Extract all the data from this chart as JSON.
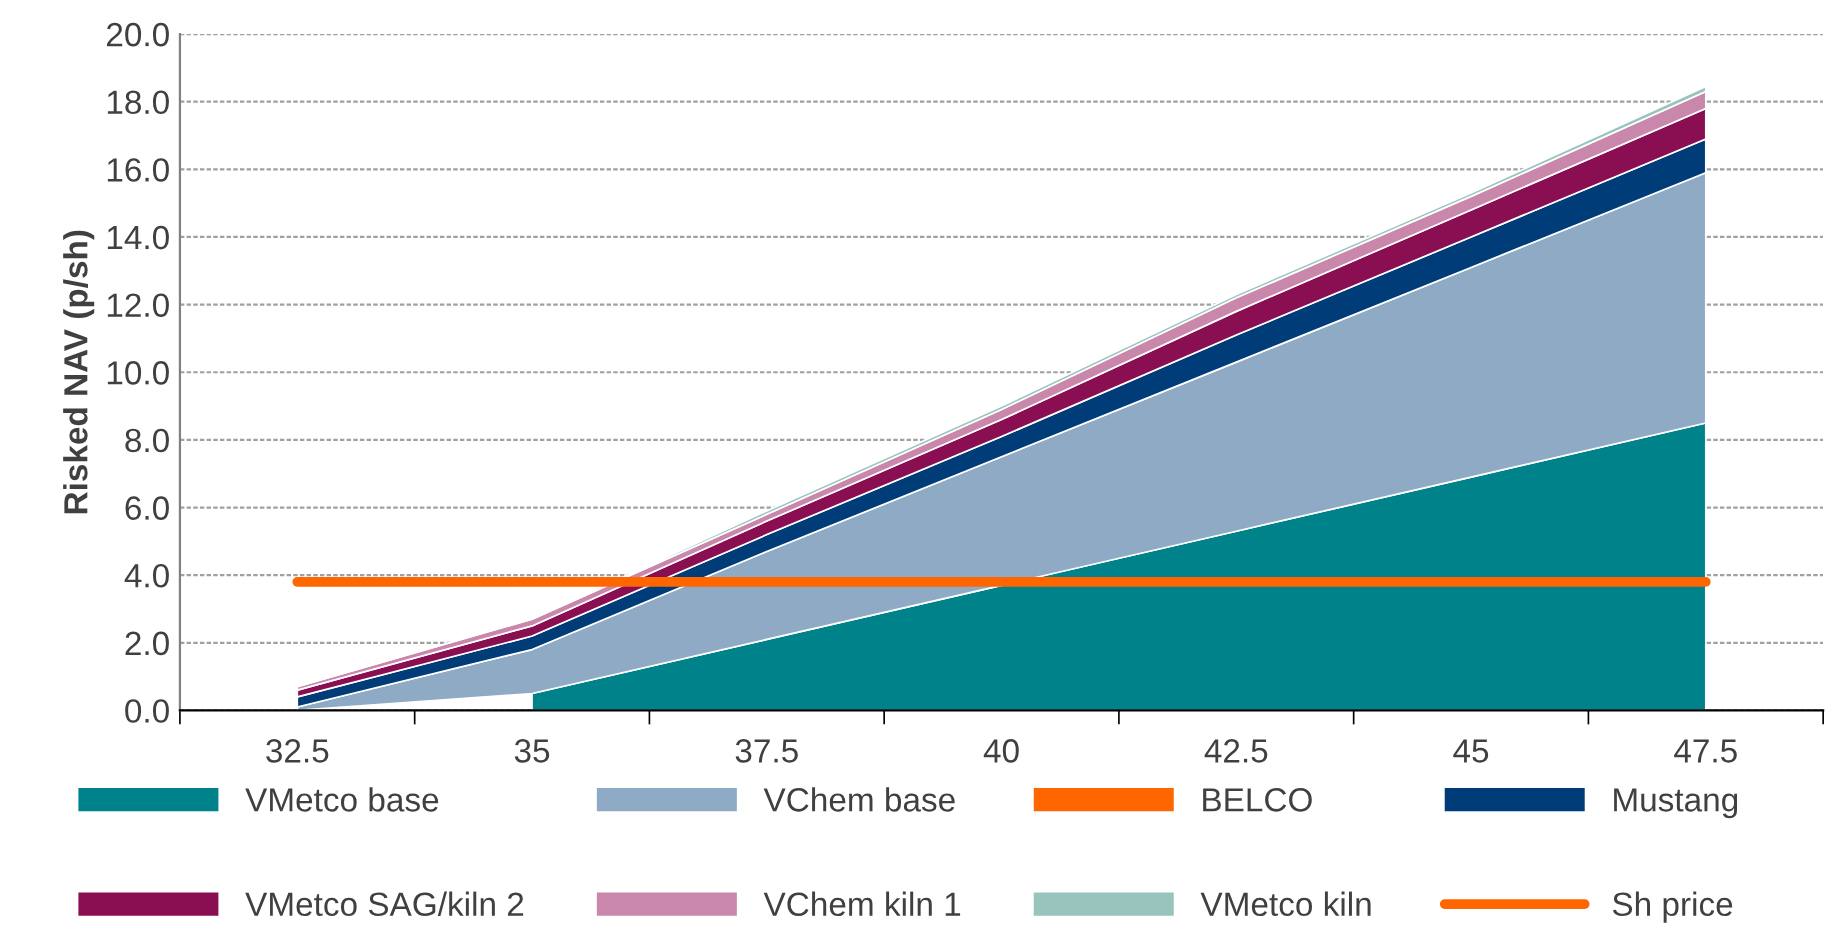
{
  "chart_data": {
    "type": "area",
    "stacked": true,
    "ylabel": "Risked NAV (p/sh)",
    "categories": [
      "32.5",
      "35",
      "37.5",
      "40",
      "42.5",
      "45",
      "47.5"
    ],
    "series": [
      {
        "name": "VMetco base",
        "color": "#00828a",
        "values": [
          null,
          0.5,
          2.1,
          3.7,
          5.3,
          6.9,
          8.5
        ]
      },
      {
        "name": "VChem base",
        "color": "#8eaac4",
        "values": [
          0.1,
          1.3,
          2.6,
          3.8,
          5.0,
          6.2,
          7.4
        ]
      },
      {
        "name": "BELCO",
        "color": "#ff6600",
        "values": [
          null,
          null,
          null,
          null,
          null,
          null,
          null
        ]
      },
      {
        "name": "Mustang",
        "color": "#003c78",
        "values": [
          0.3,
          0.4,
          0.5,
          0.6,
          0.8,
          0.9,
          1.0
        ]
      },
      {
        "name": "VMetco SAG/kiln 2",
        "color": "#8a0f52",
        "values": [
          0.2,
          0.3,
          0.4,
          0.5,
          0.7,
          0.8,
          0.9
        ]
      },
      {
        "name": "VChem kiln 1",
        "color": "#c987ab",
        "values": [
          0.1,
          0.2,
          0.2,
          0.3,
          0.4,
          0.4,
          0.5
        ]
      },
      {
        "name": "VMetco kiln",
        "color": "#99c4bd",
        "values": [
          0.0,
          0.0,
          0.1,
          0.1,
          0.1,
          0.1,
          0.15
        ]
      },
      {
        "name": "Sh price",
        "type": "line",
        "color": "#ff6600",
        "values": [
          3.8,
          3.8,
          3.8,
          3.8,
          3.8,
          3.8,
          3.8
        ]
      }
    ],
    "ylim": [
      0,
      20
    ],
    "yticks": [
      {
        "value": 0,
        "label": "0.0"
      },
      {
        "value": 2,
        "label": "2.0"
      },
      {
        "value": 4,
        "label": "4.0"
      },
      {
        "value": 6,
        "label": "6.0"
      },
      {
        "value": 8,
        "label": "8.0"
      },
      {
        "value": 10,
        "label": "10.0"
      },
      {
        "value": 12,
        "label": "12.0"
      },
      {
        "value": 14,
        "label": "14.0"
      },
      {
        "value": 16,
        "label": "16.0"
      },
      {
        "value": 18,
        "label": "18.0"
      },
      {
        "value": 20,
        "label": "20.0"
      }
    ],
    "grid": "y",
    "legend": "bottom",
    "line_style": "solid"
  }
}
